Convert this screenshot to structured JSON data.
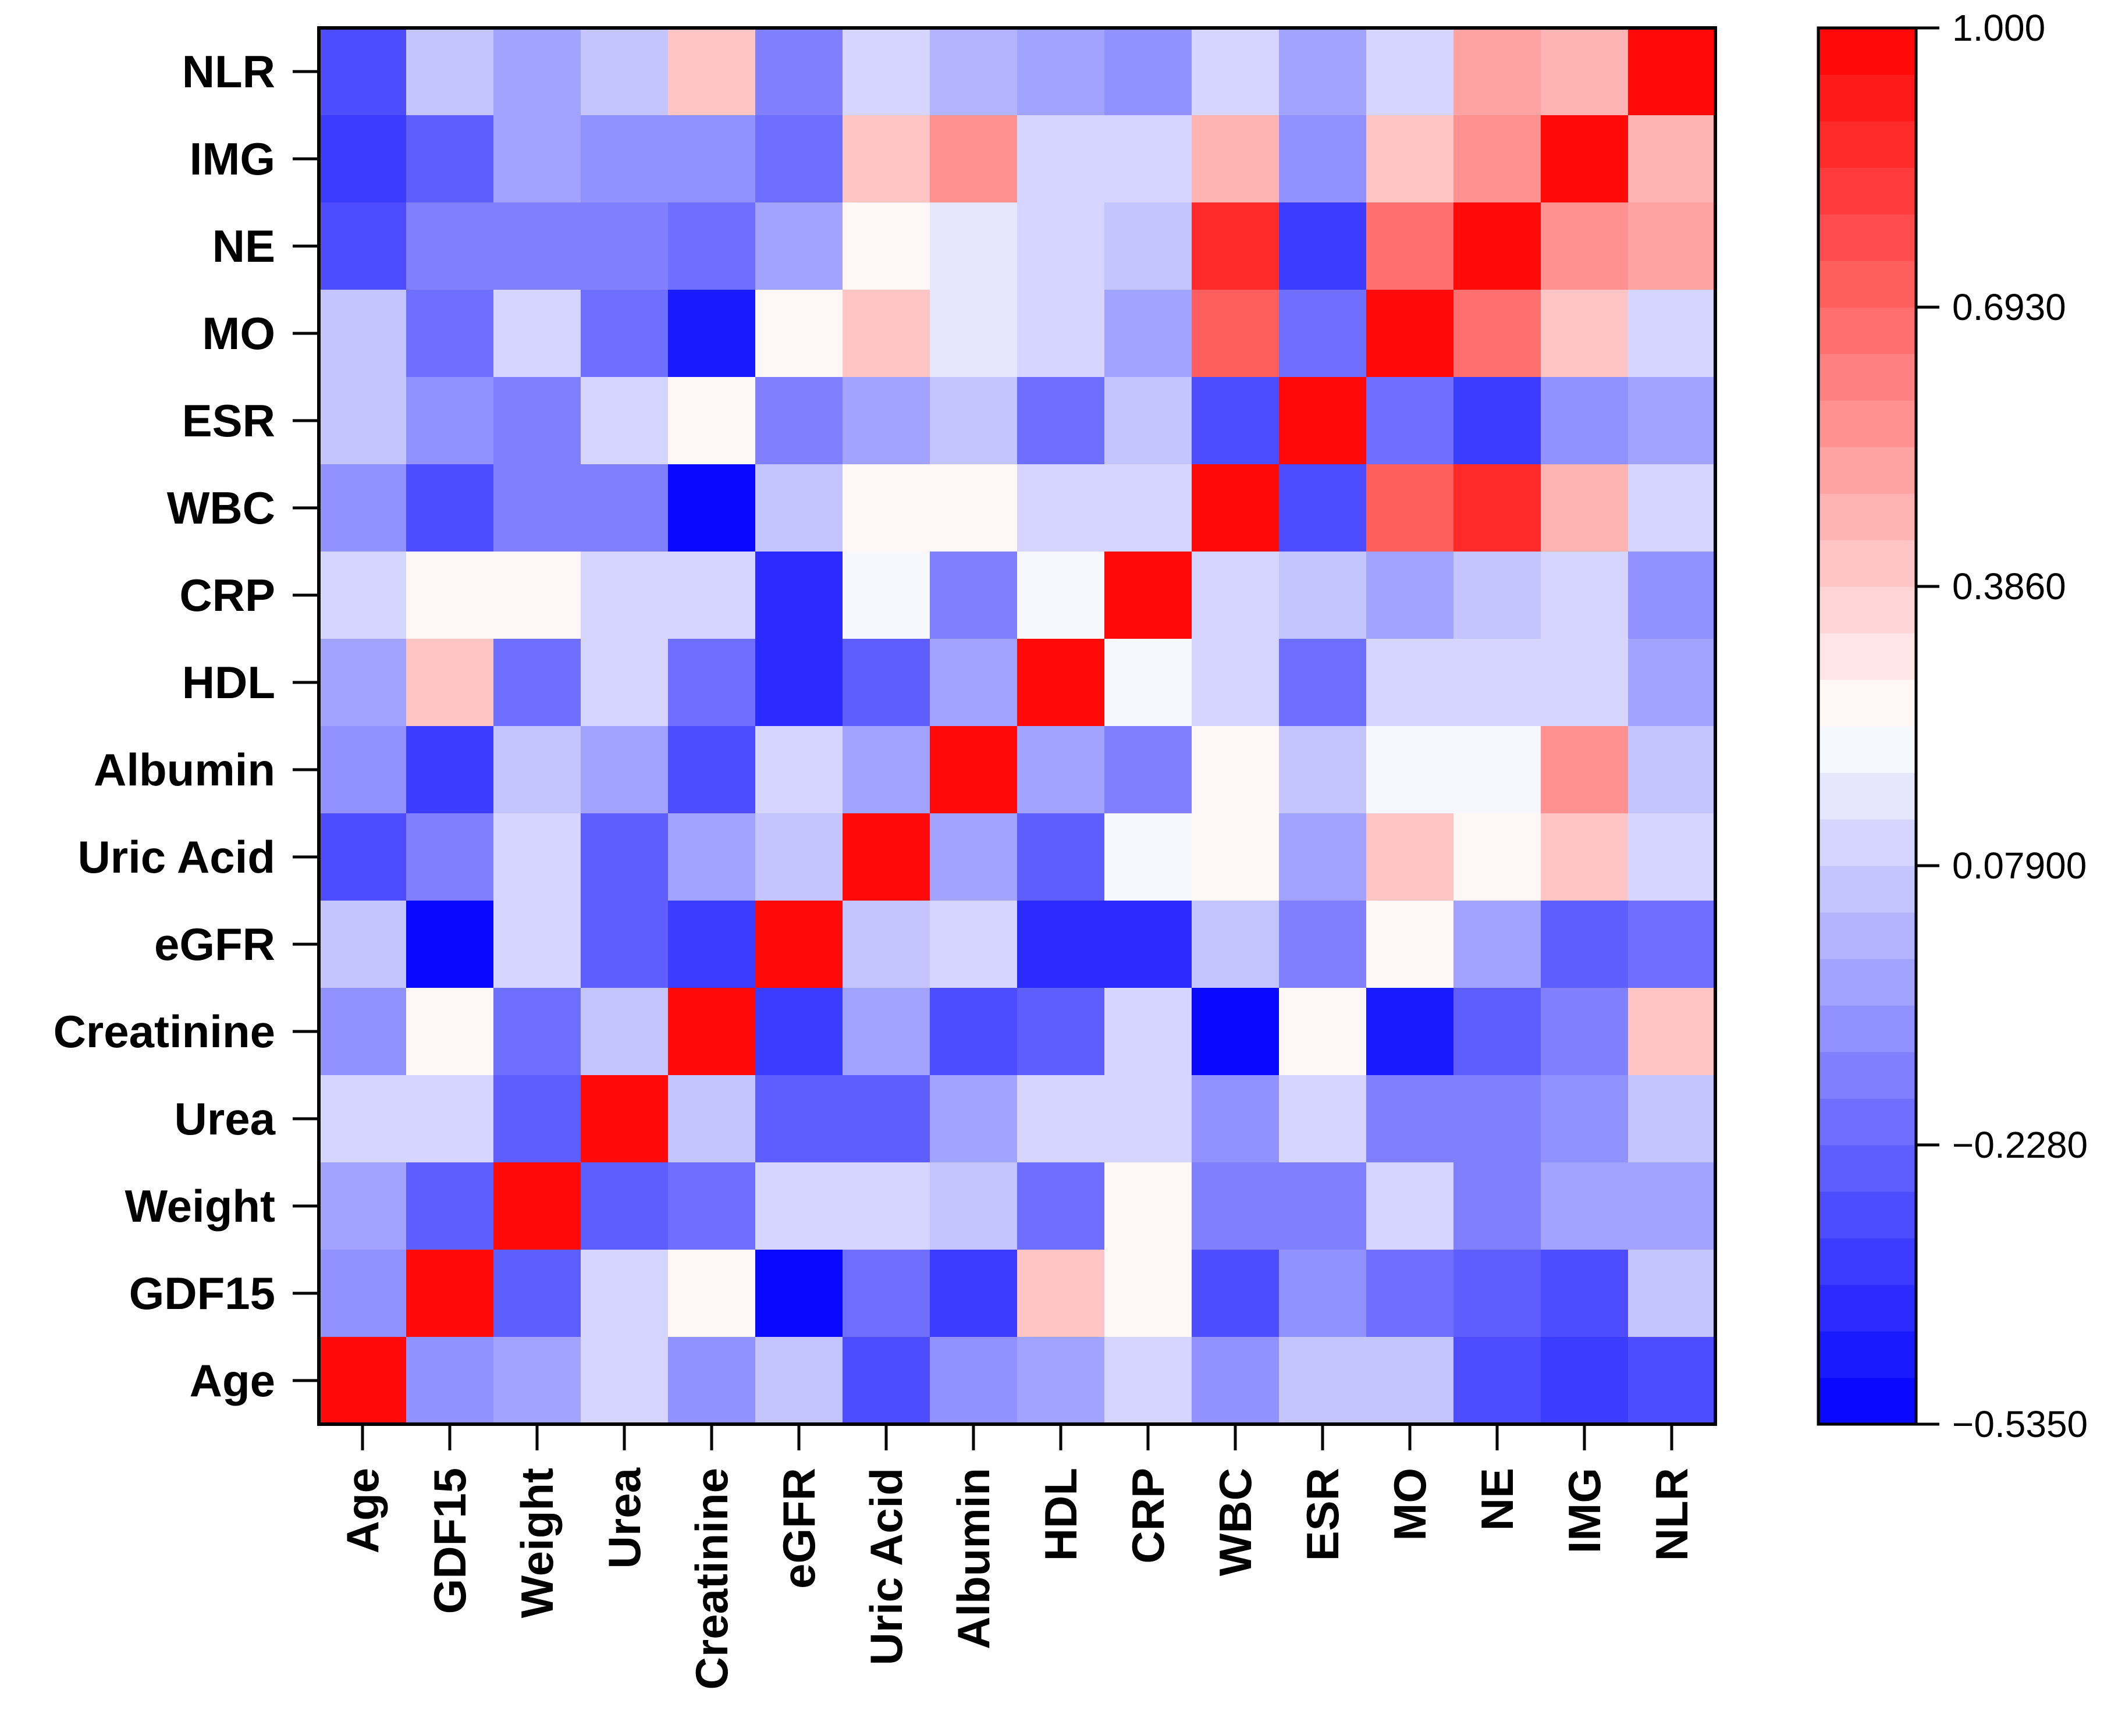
{
  "chart_data": {
    "type": "heatmap",
    "title": "",
    "xlabel": "",
    "ylabel": "",
    "x_labels": [
      "Age",
      "GDF15",
      "Weight",
      "Urea",
      "Creatinine",
      "eGFR",
      "Uric Acid",
      "Albumin",
      "HDL",
      "CRP",
      "WBC",
      "ESR",
      "MO",
      "NE",
      "IMG",
      "NLR"
    ],
    "y_labels_top_to_bottom": [
      "NLR",
      "IMG",
      "NE",
      "MO",
      "ESR",
      "WBC",
      "CRP",
      "HDL",
      "Albumin",
      "Uric Acid",
      "eGFR",
      "Creatinine",
      "Urea",
      "Weight",
      "GDF15",
      "Age"
    ],
    "values": [
      [
        -0.28,
        0.05,
        -0.05,
        0.03,
        0.42,
        -0.13,
        0.08,
        0.01,
        -0.05,
        -0.1,
        0.08,
        -0.05,
        0.08,
        0.52,
        0.47,
        1.0
      ],
      [
        -0.38,
        -0.23,
        -0.05,
        -0.1,
        -0.08,
        -0.2,
        0.4,
        0.58,
        0.13,
        0.08,
        0.47,
        -0.08,
        0.42,
        0.58,
        1.0,
        0.47
      ],
      [
        -0.28,
        -0.15,
        -0.15,
        -0.15,
        -0.2,
        -0.05,
        0.28,
        0.18,
        0.13,
        0.03,
        0.88,
        -0.38,
        0.68,
        1.0,
        0.58,
        0.52
      ],
      [
        0.05,
        -0.2,
        0.08,
        -0.2,
        -0.46,
        0.28,
        0.4,
        0.18,
        0.13,
        -0.03,
        0.7,
        -0.18,
        1.0,
        0.68,
        0.42,
        0.08
      ],
      [
        0.03,
        -0.1,
        -0.15,
        0.13,
        0.28,
        -0.15,
        -0.05,
        0.03,
        -0.18,
        0.03,
        -0.28,
        1.0,
        -0.18,
        -0.38,
        -0.1,
        -0.05
      ],
      [
        -0.1,
        -0.3,
        -0.15,
        -0.13,
        -0.51,
        0.03,
        0.28,
        0.28,
        0.08,
        0.08,
        1.0,
        -0.28,
        0.7,
        0.88,
        0.47,
        0.08
      ],
      [
        0.08,
        0.28,
        0.28,
        0.08,
        0.08,
        -0.43,
        0.21,
        -0.13,
        0.21,
        1.0,
        0.08,
        0.03,
        -0.05,
        0.03,
        0.08,
        -0.1
      ],
      [
        -0.05,
        0.42,
        -0.2,
        0.08,
        -0.2,
        -0.4,
        -0.25,
        -0.05,
        1.0,
        0.21,
        0.08,
        -0.18,
        0.13,
        0.13,
        0.13,
        -0.05
      ],
      [
        -0.1,
        -0.38,
        0.03,
        -0.05,
        -0.33,
        0.13,
        -0.05,
        1.0,
        -0.05,
        -0.13,
        0.28,
        0.03,
        0.21,
        0.21,
        0.58,
        0.03
      ],
      [
        -0.3,
        -0.15,
        0.08,
        -0.25,
        -0.05,
        0.03,
        1.0,
        -0.05,
        -0.25,
        0.21,
        0.28,
        -0.05,
        0.4,
        0.28,
        0.42,
        0.08
      ],
      [
        0.03,
        -0.54,
        0.08,
        -0.25,
        -0.35,
        1.0,
        0.03,
        0.13,
        -0.4,
        -0.43,
        0.03,
        -0.15,
        0.28,
        -0.05,
        -0.23,
        -0.18
      ],
      [
        -0.1,
        0.28,
        -0.2,
        0.03,
        1.0,
        -0.35,
        -0.05,
        -0.33,
        -0.25,
        0.08,
        -0.51,
        0.28,
        -0.46,
        -0.23,
        -0.13,
        0.42
      ],
      [
        0.08,
        0.13,
        -0.25,
        1.0,
        0.03,
        -0.25,
        -0.25,
        -0.05,
        0.08,
        0.08,
        -0.1,
        0.13,
        -0.15,
        -0.15,
        -0.1,
        0.03
      ],
      [
        -0.05,
        -0.23,
        1.0,
        -0.25,
        -0.2,
        0.08,
        0.08,
        0.03,
        -0.2,
        0.28,
        -0.15,
        -0.15,
        0.08,
        -0.15,
        -0.05,
        -0.05
      ],
      [
        -0.1,
        1.0,
        -0.23,
        0.13,
        0.28,
        -0.54,
        -0.2,
        -0.38,
        0.42,
        0.28,
        -0.28,
        -0.1,
        -0.2,
        -0.23,
        -0.28,
        0.03
      ],
      [
        1.0,
        -0.1,
        -0.05,
        0.08,
        -0.1,
        0.03,
        -0.3,
        -0.1,
        -0.05,
        0.08,
        -0.1,
        0.03,
        0.03,
        -0.28,
        -0.38,
        -0.28
      ]
    ],
    "colorbar": {
      "range": [
        -0.535,
        1.0
      ],
      "tick_labels": [
        "1.000",
        "0.6930",
        "0.3860",
        "0.07900",
        "−0.2280",
        "−0.5350"
      ],
      "tick_values": [
        1.0,
        0.693,
        0.386,
        0.079,
        -0.228,
        -0.535
      ],
      "n_steps": 30,
      "low_color": "#0000ff",
      "mid_color": "#ffffff",
      "high_color": "#ff0000"
    },
    "grid": false,
    "legend": "right"
  }
}
